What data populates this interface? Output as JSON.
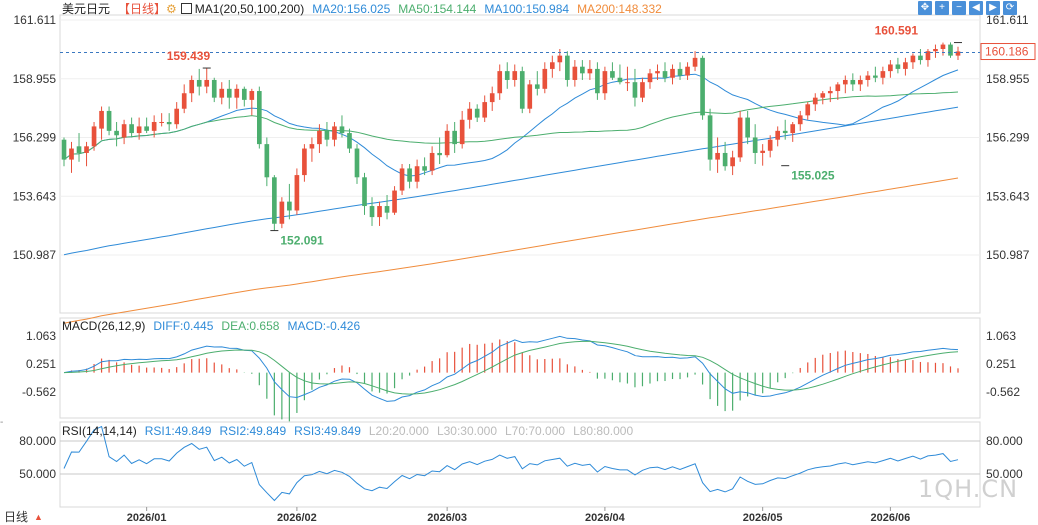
{
  "header": {
    "symbol": "美元日元",
    "period_tag": "【日线】",
    "gear_glyph": "⚙",
    "ma_indicator": "MA1(20,50,100,200)",
    "ma_values": [
      {
        "label": "MA20:156.025",
        "color": "#2f8bd8"
      },
      {
        "label": "MA50:154.144",
        "color": "#4cae6e"
      },
      {
        "label": "MA100:150.984",
        "color": "#2f8bd8"
      },
      {
        "label": "MA200:148.332",
        "color": "#f08c3c"
      }
    ]
  },
  "toolbar": [
    {
      "name": "move-icon",
      "glyph": "✥"
    },
    {
      "name": "zoom-in-icon",
      "glyph": "+"
    },
    {
      "name": "zoom-out-icon",
      "glyph": "−"
    },
    {
      "name": "scroll-left-icon",
      "glyph": "◀"
    },
    {
      "name": "scroll-right-icon",
      "glyph": "▶"
    },
    {
      "name": "reset-icon",
      "glyph": "⟳"
    }
  ],
  "macd_legend": {
    "title": "MACD(26,12,9)",
    "items": [
      {
        "label": "DIFF:0.445",
        "color": "#2f8bd8"
      },
      {
        "label": "DEA:0.658",
        "color": "#4cae6e"
      },
      {
        "label": "MACD:-0.426",
        "color": "#2f8bd8"
      }
    ]
  },
  "rsi_legend": {
    "title": "RSI(14,14,14)",
    "items": [
      {
        "label": "RSI1:49.849",
        "color": "#2f8bd8"
      },
      {
        "label": "RSI2:49.849",
        "color": "#2f8bd8"
      },
      {
        "label": "RSI3:49.849",
        "color": "#2f8bd8"
      },
      {
        "label": "L20:20.000",
        "color": "#bbbbbb"
      },
      {
        "label": "L30:30.000",
        "color": "#bbbbbb"
      },
      {
        "label": "L70:70.000",
        "color": "#bbbbbb"
      },
      {
        "label": "L80:80.000",
        "color": "#bbbbbb"
      }
    ]
  },
  "bottom_bar": {
    "label": "日线",
    "arrow_glyph": "▲"
  },
  "watermark": "1QH.CN",
  "left_tick": "- ",
  "chart_data": {
    "type": "candlestick",
    "symbol": "USDJPY",
    "period": "daily",
    "x_labels": [
      "2026/01",
      "2026/02",
      "2026/03",
      "2026/04",
      "2026/05",
      "2026/06"
    ],
    "x_label_index": [
      11,
      31,
      51,
      72,
      93,
      110
    ],
    "price_axis": {
      "ticks": [
        "161.611",
        "158.955",
        "156.299",
        "153.643",
        "150.987"
      ],
      "range": [
        147.7,
        161.611
      ]
    },
    "current_price": 160.186,
    "current_price_label": "160.186",
    "reference_price": 160.591,
    "annotations": [
      {
        "label": "159.439",
        "index": 19,
        "value": 159.439,
        "kind": "high",
        "color": "#e8513b"
      },
      {
        "label": "152.091",
        "index": 28,
        "value": 152.091,
        "kind": "low",
        "color": "#4cae6e"
      },
      {
        "label": "155.025",
        "index": 96,
        "value": 155.025,
        "kind": "low",
        "color": "#4cae6e"
      },
      {
        "label": "160.591",
        "index": 119,
        "value": 160.591,
        "kind": "high",
        "color": "#e8513b"
      }
    ],
    "up_color": "#e8513b",
    "down_color": "#4cae6e",
    "ohlc": [
      [
        156.2,
        156.3,
        155.0,
        155.3
      ],
      [
        155.3,
        156.1,
        154.7,
        155.8
      ],
      [
        155.9,
        156.5,
        155.2,
        155.6
      ],
      [
        155.6,
        156.1,
        155.0,
        155.9
      ],
      [
        155.9,
        157.0,
        155.7,
        156.8
      ],
      [
        156.7,
        157.7,
        156.2,
        157.5
      ],
      [
        157.5,
        157.7,
        156.4,
        156.6
      ],
      [
        156.6,
        157.0,
        155.9,
        156.4
      ],
      [
        156.3,
        157.1,
        156.0,
        156.9
      ],
      [
        156.9,
        157.2,
        156.3,
        156.5
      ],
      [
        156.5,
        157.2,
        156.2,
        156.8
      ],
      [
        156.8,
        157.2,
        156.5,
        156.6
      ],
      [
        156.6,
        157.3,
        156.3,
        157.0
      ],
      [
        157.0,
        157.4,
        156.8,
        157.0
      ],
      [
        157.0,
        157.4,
        156.6,
        156.9
      ],
      [
        156.9,
        157.9,
        156.7,
        157.6
      ],
      [
        157.6,
        158.7,
        157.4,
        158.3
      ],
      [
        158.3,
        159.1,
        157.9,
        158.9
      ],
      [
        158.9,
        159.4,
        158.2,
        158.6
      ],
      [
        158.6,
        159.44,
        158.3,
        158.9
      ],
      [
        158.9,
        159.0,
        157.9,
        158.1
      ],
      [
        158.1,
        158.8,
        157.8,
        158.5
      ],
      [
        158.5,
        158.9,
        157.6,
        158.1
      ],
      [
        158.1,
        158.7,
        157.6,
        158.5
      ],
      [
        158.5,
        158.6,
        157.7,
        158.0
      ],
      [
        158.0,
        158.5,
        157.3,
        158.4
      ],
      [
        158.4,
        158.6,
        155.8,
        156.0
      ],
      [
        156.0,
        156.3,
        154.1,
        154.5
      ],
      [
        154.5,
        154.6,
        152.09,
        152.4
      ],
      [
        152.4,
        153.6,
        152.2,
        153.4
      ],
      [
        153.4,
        154.2,
        152.6,
        153.0
      ],
      [
        153.0,
        154.9,
        152.8,
        154.6
      ],
      [
        154.6,
        156.0,
        154.3,
        155.8
      ],
      [
        155.8,
        156.3,
        155.2,
        156.0
      ],
      [
        156.0,
        156.9,
        155.6,
        156.6
      ],
      [
        156.6,
        157.0,
        155.9,
        156.2
      ],
      [
        156.2,
        157.0,
        155.9,
        156.8
      ],
      [
        156.8,
        157.3,
        156.3,
        156.5
      ],
      [
        156.5,
        156.7,
        155.6,
        155.8
      ],
      [
        155.8,
        156.0,
        154.2,
        154.5
      ],
      [
        154.5,
        154.7,
        152.8,
        153.2
      ],
      [
        153.2,
        153.6,
        152.3,
        152.7
      ],
      [
        152.7,
        153.4,
        152.3,
        153.2
      ],
      [
        153.2,
        153.7,
        152.6,
        152.9
      ],
      [
        152.9,
        154.1,
        152.8,
        153.9
      ],
      [
        153.9,
        155.1,
        153.7,
        154.9
      ],
      [
        154.9,
        155.1,
        154.0,
        154.3
      ],
      [
        154.3,
        155.3,
        154.0,
        155.0
      ],
      [
        155.0,
        155.4,
        154.6,
        154.8
      ],
      [
        154.8,
        155.9,
        154.6,
        155.6
      ],
      [
        155.6,
        156.3,
        155.1,
        155.5
      ],
      [
        155.5,
        156.9,
        155.4,
        156.6
      ],
      [
        156.6,
        157.0,
        155.6,
        156.0
      ],
      [
        156.0,
        157.5,
        155.8,
        157.1
      ],
      [
        157.1,
        157.9,
        156.7,
        157.6
      ],
      [
        157.6,
        157.8,
        157.0,
        157.2
      ],
      [
        157.2,
        158.2,
        157.0,
        157.9
      ],
      [
        157.9,
        158.6,
        157.5,
        158.3
      ],
      [
        158.3,
        159.6,
        158.0,
        159.3
      ],
      [
        159.3,
        159.7,
        158.5,
        158.9
      ],
      [
        158.9,
        159.6,
        158.6,
        159.3
      ],
      [
        159.3,
        159.5,
        157.4,
        157.6
      ],
      [
        157.6,
        158.9,
        157.4,
        158.7
      ],
      [
        158.7,
        159.3,
        158.2,
        158.5
      ],
      [
        158.5,
        159.7,
        158.3,
        159.4
      ],
      [
        159.4,
        160.0,
        159.0,
        159.7
      ],
      [
        159.7,
        160.3,
        159.3,
        160.0
      ],
      [
        160.0,
        160.2,
        158.6,
        158.9
      ],
      [
        158.9,
        159.8,
        158.6,
        159.5
      ],
      [
        159.5,
        159.8,
        158.9,
        159.2
      ],
      [
        159.2,
        159.8,
        158.9,
        159.4
      ],
      [
        159.4,
        159.7,
        158.0,
        158.3
      ],
      [
        158.3,
        159.5,
        158.0,
        159.3
      ],
      [
        159.3,
        159.7,
        158.9,
        159.0
      ],
      [
        159.0,
        159.6,
        158.7,
        158.8
      ],
      [
        158.8,
        159.5,
        158.4,
        158.8
      ],
      [
        158.8,
        159.4,
        157.7,
        158.1
      ],
      [
        158.1,
        159.0,
        157.9,
        158.8
      ],
      [
        158.8,
        159.4,
        158.5,
        159.2
      ],
      [
        159.2,
        159.6,
        158.9,
        159.3
      ],
      [
        159.3,
        159.7,
        158.8,
        159.0
      ],
      [
        159.0,
        159.6,
        158.7,
        159.4
      ],
      [
        159.4,
        159.7,
        158.9,
        159.1
      ],
      [
        159.1,
        159.7,
        158.9,
        159.5
      ],
      [
        159.5,
        160.2,
        159.3,
        159.9
      ],
      [
        159.9,
        160.0,
        157.1,
        157.3
      ],
      [
        157.3,
        157.6,
        154.8,
        155.3
      ],
      [
        155.3,
        156.3,
        154.7,
        155.6
      ],
      [
        155.6,
        156.1,
        154.8,
        155.0
      ],
      [
        155.0,
        155.7,
        154.6,
        155.4
      ],
      [
        155.4,
        157.5,
        155.2,
        157.2
      ],
      [
        157.2,
        157.5,
        156.0,
        156.3
      ],
      [
        156.3,
        156.9,
        155.1,
        155.6
      ],
      [
        155.6,
        156.0,
        155.025,
        155.7
      ],
      [
        155.7,
        156.4,
        155.4,
        156.2
      ],
      [
        156.2,
        156.8,
        155.9,
        156.6
      ],
      [
        156.6,
        157.1,
        156.2,
        156.5
      ],
      [
        156.5,
        157.0,
        156.1,
        156.9
      ],
      [
        156.9,
        157.5,
        156.6,
        157.3
      ],
      [
        157.3,
        157.9,
        157.1,
        157.8
      ],
      [
        157.8,
        158.3,
        157.5,
        158.1
      ],
      [
        158.1,
        158.4,
        157.8,
        158.3
      ],
      [
        158.3,
        158.6,
        157.9,
        158.4
      ],
      [
        158.4,
        158.8,
        158.0,
        158.7
      ],
      [
        158.7,
        159.1,
        158.3,
        158.9
      ],
      [
        158.9,
        159.2,
        158.4,
        158.7
      ],
      [
        158.7,
        159.1,
        158.4,
        158.9
      ],
      [
        158.9,
        159.3,
        158.6,
        159.1
      ],
      [
        159.1,
        159.5,
        158.8,
        159.0
      ],
      [
        159.0,
        159.5,
        158.7,
        159.3
      ],
      [
        159.3,
        159.8,
        159.0,
        159.6
      ],
      [
        159.6,
        159.9,
        159.2,
        159.4
      ],
      [
        159.4,
        159.9,
        159.1,
        159.7
      ],
      [
        159.7,
        160.1,
        159.4,
        160.0
      ],
      [
        160.0,
        160.3,
        159.6,
        159.8
      ],
      [
        159.8,
        160.3,
        159.5,
        160.2
      ],
      [
        160.2,
        160.5,
        159.9,
        160.3
      ],
      [
        160.3,
        160.59,
        160.0,
        160.5
      ],
      [
        160.5,
        160.6,
        159.9,
        160.0
      ],
      [
        160.0,
        160.4,
        159.8,
        160.19
      ]
    ],
    "macd": {
      "axis_ticks": [
        "1.063",
        "0.251",
        "-0.562"
      ],
      "range": [
        -0.9,
        1.2
      ]
    },
    "rsi": {
      "axis_ticks": [
        "80.000",
        "50.000"
      ],
      "range": [
        28,
        88
      ]
    }
  }
}
